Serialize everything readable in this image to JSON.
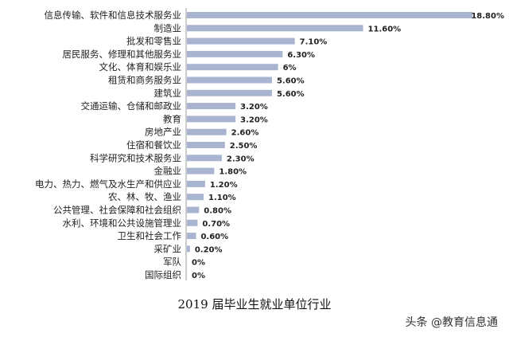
{
  "chart_data": {
    "type": "bar",
    "orientation": "horizontal",
    "title": "2019 届毕业生就业单位行业",
    "categories": [
      "信息传输、软件和信息技术服务业",
      "制造业",
      "批发和零售业",
      "居民服务、修理和其他服务业",
      "文化、体育和娱乐业",
      "租赁和商务服务业",
      "建筑业",
      "交通运输、仓储和邮政业",
      "教育",
      "房地产业",
      "住宿和餐饮业",
      "科学研究和技术服务业",
      "金融业",
      "电力、热力、燃气及水生产和供应业",
      "农、林、牧、渔业",
      "公共管理、社会保障和社会组织",
      "水利、环境和公共设施管理业",
      "卫生和社会工作",
      "采矿业",
      "军队",
      "国际组织"
    ],
    "values": [
      18.8,
      11.6,
      7.1,
      6.3,
      6,
      5.6,
      5.6,
      3.2,
      3.2,
      2.6,
      2.5,
      2.3,
      1.8,
      1.2,
      1.1,
      0.8,
      0.7,
      0.6,
      0.2,
      0,
      0
    ],
    "value_labels": [
      "18.80%",
      "11.60%",
      "7.10%",
      "6.30%",
      "6%",
      "5.60%",
      "5.60%",
      "3.20%",
      "3.20%",
      "2.60%",
      "2.50%",
      "2.30%",
      "1.80%",
      "1.20%",
      "1.10%",
      "0.80%",
      "0.70%",
      "0.60%",
      "0.20%",
      "0%",
      "0%"
    ],
    "xlim": [
      0,
      20
    ],
    "grid": false,
    "legend": "none",
    "bar_color": "#a9b4d0"
  },
  "watermark": "头条 @教育信息通"
}
